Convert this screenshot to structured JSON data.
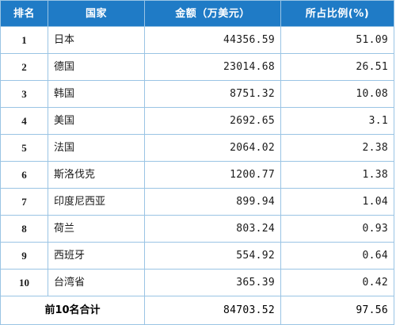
{
  "table": {
    "headers": {
      "rank": "排名",
      "country": "国家",
      "amount": "金额（万美元）",
      "share": "所占比例(%)"
    },
    "rows": [
      {
        "rank": "1",
        "country": "日本",
        "amount": "44356.59",
        "share": "51.09"
      },
      {
        "rank": "2",
        "country": "德国",
        "amount": "23014.68",
        "share": "26.51"
      },
      {
        "rank": "3",
        "country": "韩国",
        "amount": "8751.32",
        "share": "10.08"
      },
      {
        "rank": "4",
        "country": "美国",
        "amount": "2692.65",
        "share": "3.1"
      },
      {
        "rank": "5",
        "country": "法国",
        "amount": "2064.02",
        "share": "2.38"
      },
      {
        "rank": "6",
        "country": "斯洛伐克",
        "amount": "1200.77",
        "share": "1.38"
      },
      {
        "rank": "7",
        "country": "印度尼西亚",
        "amount": "899.94",
        "share": "1.04"
      },
      {
        "rank": "8",
        "country": "荷兰",
        "amount": "803.24",
        "share": "0.93"
      },
      {
        "rank": "9",
        "country": "西班牙",
        "amount": "554.92",
        "share": "0.64"
      },
      {
        "rank": "10",
        "country": "台湾省",
        "amount": "365.39",
        "share": "0.42"
      }
    ],
    "total": {
      "label": "前10名合计",
      "amount": "84703.52",
      "share": "97.56"
    }
  },
  "colors": {
    "header_background": "#1f7bc6",
    "header_text": "#ffffff",
    "border": "#9ac4e4"
  }
}
